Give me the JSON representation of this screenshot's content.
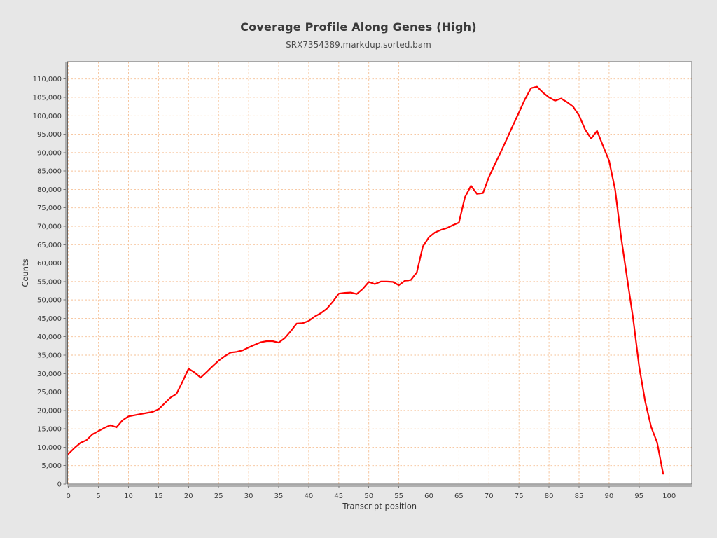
{
  "title": "Coverage Profile Along Genes (High)",
  "subtitle": "SRX7354389.markdup.sorted.bam",
  "colors": {
    "page_background": "#e7e7e7",
    "plot_background": "#ffffff",
    "grid": "#f6c196",
    "line": "#ff0000",
    "axis": "#777777",
    "outline": "#666666",
    "tick_label": "#3c3c3c",
    "axis_label": "#333333"
  },
  "chart_data": {
    "type": "line",
    "title": "Coverage Profile Along Genes (High)",
    "subtitle": "SRX7354389.markdup.sorted.bam",
    "xlabel": "Transcript position",
    "ylabel": "Counts",
    "xlim": [
      0,
      104
    ],
    "ylim": [
      0,
      110000
    ],
    "x_ticks": [
      0,
      5,
      10,
      15,
      20,
      25,
      30,
      35,
      40,
      45,
      50,
      55,
      60,
      65,
      70,
      75,
      80,
      85,
      90,
      95,
      100
    ],
    "y_tick_step": 5000,
    "grid": true,
    "legend": "none",
    "x": [
      0,
      1,
      2,
      3,
      4,
      5,
      6,
      7,
      8,
      9,
      10,
      11,
      12,
      13,
      14,
      15,
      16,
      17,
      18,
      19,
      20,
      21,
      22,
      23,
      24,
      25,
      26,
      27,
      28,
      29,
      30,
      31,
      32,
      33,
      34,
      35,
      36,
      37,
      38,
      39,
      40,
      41,
      42,
      43,
      44,
      45,
      46,
      47,
      48,
      49,
      50,
      51,
      52,
      53,
      54,
      55,
      56,
      57,
      58,
      59,
      60,
      61,
      62,
      63,
      64,
      65,
      66,
      67,
      68,
      69,
      70,
      71,
      72,
      73,
      74,
      75,
      76,
      77,
      78,
      79,
      80,
      81,
      82,
      83,
      84,
      85,
      86,
      87,
      88,
      89,
      90,
      91,
      92,
      93,
      94,
      95,
      96,
      97,
      98,
      99
    ],
    "counts": [
      8200,
      9800,
      11200,
      11900,
      13500,
      14400,
      15300,
      16000,
      15400,
      17300,
      18400,
      18700,
      19000,
      19300,
      19600,
      20300,
      21900,
      23500,
      24500,
      27800,
      31300,
      30300,
      28900,
      30400,
      32000,
      33500,
      34700,
      35700,
      35900,
      36300,
      37100,
      37800,
      38500,
      38800,
      38800,
      38400,
      39600,
      41500,
      43600,
      43700,
      44300,
      45500,
      46400,
      47600,
      49500,
      51700,
      51900,
      52000,
      51600,
      53000,
      54900,
      54300,
      55000,
      55000,
      54900,
      54000,
      55200,
      55400,
      57500,
      64500,
      67000,
      68300,
      69000,
      69500,
      70300,
      71000,
      77900,
      81000,
      78800,
      79000,
      83400,
      86900,
      90300,
      93800,
      97400,
      100900,
      104500,
      107500,
      107900,
      106300,
      105000,
      104100,
      104700,
      103700,
      102500,
      100100,
      96300,
      93800,
      95900,
      91800,
      87800,
      80000,
      67000,
      56000,
      45000,
      32000,
      22500,
      15500,
      11300,
      2800
    ]
  }
}
